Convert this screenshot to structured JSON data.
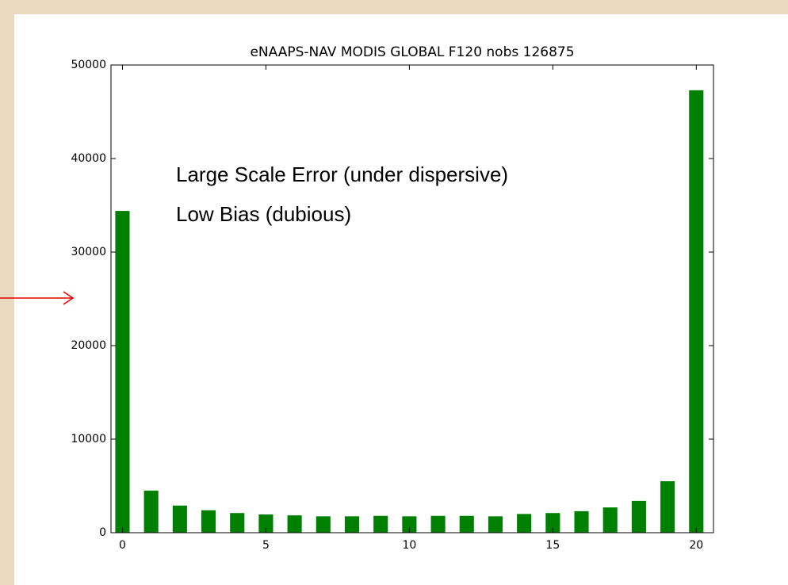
{
  "chart_data": {
    "type": "bar",
    "title": "eNAAPS-NAV MODIS GLOBAL F120 nobs 126875",
    "annotations": [
      "Large Scale Error (under dispersive)",
      "Low Bias (dubious)"
    ],
    "x": [
      0,
      1,
      2,
      3,
      4,
      5,
      6,
      7,
      8,
      9,
      10,
      11,
      12,
      13,
      14,
      15,
      16,
      17,
      18,
      19,
      20
    ],
    "values": [
      34400,
      4500,
      2900,
      2400,
      2100,
      1950,
      1850,
      1750,
      1750,
      1800,
      1750,
      1800,
      1800,
      1750,
      2000,
      2100,
      2300,
      2700,
      3400,
      5500,
      47300
    ],
    "color": "#008000",
    "xlim": [
      -0.4,
      20.6
    ],
    "xticks": [
      0,
      5,
      10,
      15,
      20
    ],
    "ylim": [
      0,
      50000
    ],
    "yticks": [
      0,
      10000,
      20000,
      30000,
      40000,
      50000
    ],
    "grid": false
  }
}
